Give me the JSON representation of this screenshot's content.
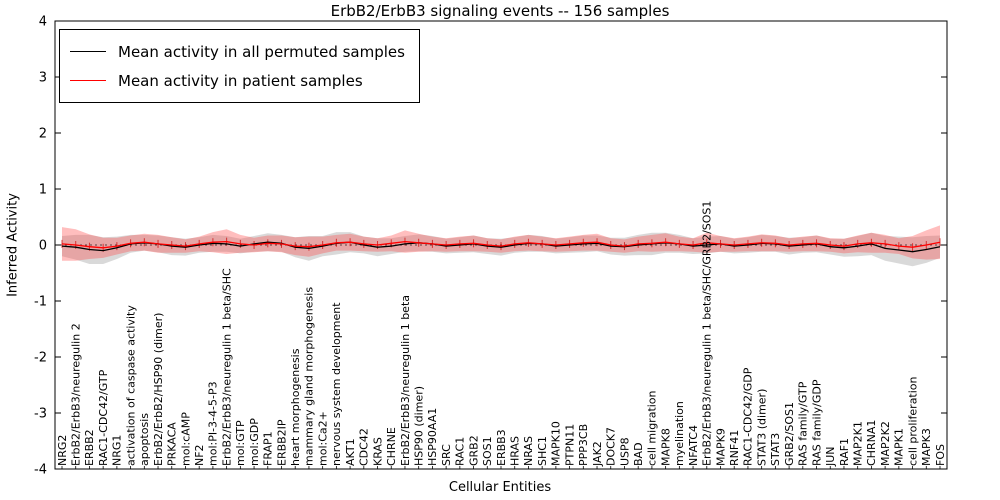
{
  "chart_data": {
    "type": "line",
    "title": "ErbB2/ErbB3 signaling events -- 156 samples",
    "xlabel": "Cellular Entities",
    "ylabel": "Inferred Activity",
    "ylim": [
      -4,
      4
    ],
    "yticks": [
      -4,
      -3,
      -2,
      -1,
      0,
      1,
      2,
      3,
      4
    ],
    "grid": false,
    "legend_position": "upper-left",
    "colors": {
      "permuted_line": "#000000",
      "patient_line": "#ff0000",
      "permuted_band": "#aaaaaa",
      "patient_band": "#ff4444",
      "axis": "#000000"
    },
    "categories": [
      "NRG2",
      "ErbB2/ErbB3/neuregulin 2",
      "ERBB2",
      "RAC1-CDC42/GTP",
      "NRG1",
      "activation of caspase activity",
      "apoptosis",
      "ErbB2/ErbB2/HSP90 (dimer)",
      "PRKACA",
      "mol:cAMP",
      "NF2",
      "mol:PI-3-4-5-P3",
      "ErbB2/ErbB3/neuregulin 1 beta/SHC",
      "mol:GTP",
      "mol:GDP",
      "FRAP1",
      "ERBB2IP",
      "heart morphogenesis",
      "mammary gland morphogenesis",
      "mol:Ca2+",
      "nervous system development",
      "AKT1",
      "CDC42",
      "KRAS",
      "CHRNE",
      "ErbB2/ErbB3/neuregulin 1 beta",
      "HSP90 (dimer)",
      "HSP90AA1",
      "SRC",
      "RAC1",
      "GRB2",
      "SOS1",
      "ERBB3",
      "HRAS",
      "NRAS",
      "SHC1",
      "MAPK10",
      "PTPN11",
      "PPP3CB",
      "JAK2",
      "DOCK7",
      "USP8",
      "BAD",
      "cell migration",
      "MAPK8",
      "myelination",
      "NFATC4",
      "ErbB2/ErbB3/neuregulin 1 beta/SHC/GRB2/SOS1",
      "MAPK9",
      "RNF41",
      "RAC1-CDC42/GDP",
      "STAT3 (dimer)",
      "STAT3",
      "GRB2/SOS1",
      "RAS family/GTP",
      "RAS family/GDP",
      "JUN",
      "RAF1",
      "MAP2K1",
      "CHRNA1",
      "MAP2K2",
      "MAPK1",
      "cell proliferation",
      "MAPK3",
      "FOS"
    ],
    "series": [
      {
        "name": "Mean activity in all permuted samples",
        "color": "#000000",
        "values": [
          -0.02,
          -0.04,
          -0.08,
          -0.1,
          -0.05,
          0.02,
          0.04,
          0.02,
          -0.02,
          -0.04,
          0.0,
          0.03,
          0.02,
          -0.02,
          0.02,
          0.05,
          0.03,
          -0.04,
          -0.06,
          -0.02,
          0.03,
          0.05,
          0.0,
          -0.04,
          -0.02,
          0.02,
          0.04,
          0.02,
          -0.02,
          0.0,
          0.02,
          -0.02,
          -0.04,
          0.0,
          0.03,
          0.02,
          -0.02,
          0.0,
          0.02,
          0.03,
          -0.02,
          -0.03,
          0.0,
          0.02,
          0.04,
          0.02,
          -0.02,
          0.0,
          0.02,
          -0.02,
          0.0,
          0.03,
          0.02,
          -0.02,
          0.0,
          0.02,
          -0.03,
          -0.05,
          -0.02,
          0.02,
          -0.06,
          -0.09,
          -0.12,
          -0.08,
          -0.03
        ],
        "band_halfwidth": [
          0.18,
          0.22,
          0.26,
          0.24,
          0.2,
          0.16,
          0.14,
          0.15,
          0.16,
          0.15,
          0.14,
          0.15,
          0.14,
          0.13,
          0.14,
          0.16,
          0.15,
          0.18,
          0.22,
          0.18,
          0.2,
          0.18,
          0.15,
          0.16,
          0.14,
          0.14,
          0.15,
          0.14,
          0.13,
          0.14,
          0.15,
          0.14,
          0.15,
          0.14,
          0.15,
          0.14,
          0.13,
          0.14,
          0.15,
          0.14,
          0.15,
          0.16,
          0.18,
          0.2,
          0.18,
          0.16,
          0.14,
          0.15,
          0.14,
          0.13,
          0.14,
          0.15,
          0.14,
          0.15,
          0.14,
          0.15,
          0.14,
          0.16,
          0.18,
          0.2,
          0.22,
          0.24,
          0.26,
          0.24,
          0.2
        ]
      },
      {
        "name": "Mean activity in patient samples",
        "color": "#ff0000",
        "values": [
          0.02,
          0.0,
          -0.03,
          -0.05,
          -0.02,
          0.03,
          0.05,
          0.02,
          0.0,
          -0.02,
          0.02,
          0.05,
          0.06,
          0.02,
          0.0,
          0.03,
          0.02,
          -0.02,
          -0.03,
          0.0,
          0.04,
          0.05,
          0.02,
          0.0,
          0.03,
          0.06,
          0.04,
          0.02,
          0.0,
          0.02,
          0.03,
          0.0,
          -0.02,
          0.02,
          0.04,
          0.02,
          0.0,
          0.02,
          0.04,
          0.05,
          0.0,
          -0.02,
          0.02,
          0.03,
          0.05,
          0.02,
          0.0,
          0.04,
          0.02,
          0.0,
          0.02,
          0.04,
          0.03,
          0.0,
          0.02,
          0.03,
          0.0,
          -0.02,
          0.02,
          0.04,
          0.02,
          -0.02,
          -0.04,
          0.0,
          0.05
        ],
        "band_halfwidth": [
          0.3,
          0.28,
          0.22,
          0.18,
          0.15,
          0.14,
          0.15,
          0.16,
          0.14,
          0.12,
          0.13,
          0.18,
          0.22,
          0.16,
          0.13,
          0.14,
          0.15,
          0.16,
          0.18,
          0.15,
          0.14,
          0.15,
          0.13,
          0.12,
          0.14,
          0.2,
          0.16,
          0.13,
          0.12,
          0.13,
          0.14,
          0.12,
          0.12,
          0.13,
          0.14,
          0.13,
          0.12,
          0.13,
          0.14,
          0.15,
          0.12,
          0.12,
          0.13,
          0.15,
          0.16,
          0.13,
          0.12,
          0.18,
          0.14,
          0.12,
          0.13,
          0.15,
          0.14,
          0.12,
          0.13,
          0.14,
          0.12,
          0.13,
          0.15,
          0.18,
          0.16,
          0.14,
          0.2,
          0.26,
          0.3
        ]
      }
    ]
  }
}
